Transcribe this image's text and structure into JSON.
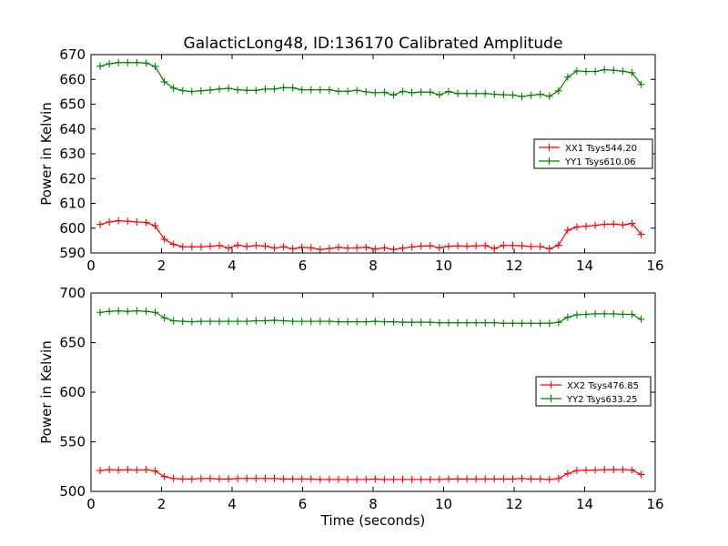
{
  "title": "GalacticLong48, ID:136170 Calibrated Amplitude",
  "chart_data": [
    {
      "type": "line",
      "ylabel": "Power in Kelvin",
      "xlabel": "",
      "xlim": [
        0,
        16
      ],
      "ylim": [
        590,
        670
      ],
      "x_ticks": [
        "0",
        "2",
        "4",
        "6",
        "8",
        "10",
        "12",
        "14",
        "16"
      ],
      "y_ticks": [
        "590",
        "600",
        "610",
        "620",
        "630",
        "640",
        "650",
        "660",
        "670"
      ],
      "legend_position": "right",
      "x": [
        0.26,
        0.52,
        0.78,
        1.04,
        1.3,
        1.56,
        1.82,
        2.08,
        2.34,
        2.6,
        2.86,
        3.12,
        3.38,
        3.64,
        3.9,
        4.16,
        4.42,
        4.68,
        4.94,
        5.2,
        5.46,
        5.72,
        5.98,
        6.24,
        6.5,
        6.76,
        7.02,
        7.28,
        7.54,
        7.8,
        8.06,
        8.32,
        8.58,
        8.84,
        9.1,
        9.36,
        9.62,
        9.88,
        10.14,
        10.4,
        10.66,
        10.92,
        11.18,
        11.44,
        11.7,
        11.96,
        12.22,
        12.48,
        12.74,
        13.0,
        13.26,
        13.52,
        13.78,
        14.04,
        14.3,
        14.56,
        14.82,
        15.08,
        15.34,
        15.6
      ],
      "series": [
        {
          "name": "XX1 Tsys544.20",
          "color": "#ff0000",
          "values": [
            601.5,
            602.5,
            603.0,
            602.8,
            602.5,
            602.3,
            601.0,
            595.5,
            593.5,
            592.5,
            592.5,
            592.5,
            592.7,
            593.0,
            592.0,
            593.2,
            592.6,
            593.0,
            592.8,
            592.0,
            592.5,
            591.7,
            592.3,
            592.1,
            591.4,
            591.8,
            592.3,
            592.0,
            592.1,
            592.3,
            591.6,
            592.1,
            591.4,
            592.0,
            592.4,
            592.8,
            592.9,
            592.1,
            592.7,
            592.9,
            592.7,
            592.9,
            593.0,
            591.8,
            593.1,
            593.0,
            592.9,
            592.6,
            592.6,
            591.7,
            593.1,
            599.2,
            600.5,
            600.8,
            601.1,
            601.6,
            601.7,
            601.3,
            601.9,
            597.5
          ]
        },
        {
          "name": "YY1 Tsys610.06",
          "color": "#008000",
          "values": [
            665.3,
            666.3,
            666.8,
            666.8,
            666.8,
            666.6,
            665.2,
            659.0,
            656.5,
            655.5,
            655.1,
            655.4,
            655.7,
            656.1,
            656.4,
            655.8,
            655.6,
            655.6,
            656.1,
            656.1,
            656.7,
            656.6,
            655.8,
            655.8,
            655.8,
            655.8,
            655.2,
            655.2,
            655.6,
            655.0,
            654.6,
            654.8,
            653.7,
            655.2,
            654.6,
            654.9,
            654.9,
            653.8,
            655.1,
            654.3,
            654.3,
            654.3,
            654.3,
            654.0,
            653.8,
            653.7,
            653.1,
            653.6,
            654.0,
            653.2,
            655.4,
            660.9,
            663.4,
            663.2,
            663.2,
            663.9,
            663.7,
            663.3,
            662.7,
            658.0
          ]
        }
      ]
    },
    {
      "type": "line",
      "ylabel": "Power in Kelvin",
      "xlabel": "Time (seconds)",
      "xlim": [
        0,
        16
      ],
      "ylim": [
        500,
        700
      ],
      "x_ticks": [
        "0",
        "2",
        "4",
        "6",
        "8",
        "10",
        "12",
        "14",
        "16"
      ],
      "y_ticks": [
        "500",
        "550",
        "600",
        "650",
        "700"
      ],
      "legend_position": "right",
      "x": [
        0.26,
        0.52,
        0.78,
        1.04,
        1.3,
        1.56,
        1.82,
        2.08,
        2.34,
        2.6,
        2.86,
        3.12,
        3.38,
        3.64,
        3.9,
        4.16,
        4.42,
        4.68,
        4.94,
        5.2,
        5.46,
        5.72,
        5.98,
        6.24,
        6.5,
        6.76,
        7.02,
        7.28,
        7.54,
        7.8,
        8.06,
        8.32,
        8.58,
        8.84,
        9.1,
        9.36,
        9.62,
        9.88,
        10.14,
        10.4,
        10.66,
        10.92,
        11.18,
        11.44,
        11.7,
        11.96,
        12.22,
        12.48,
        12.74,
        13.0,
        13.26,
        13.52,
        13.78,
        14.04,
        14.3,
        14.56,
        14.82,
        15.08,
        15.34,
        15.6
      ],
      "series": [
        {
          "name": "XX2 Tsys476.85",
          "color": "#ff0000",
          "values": [
            521,
            522,
            521.5,
            522,
            521.5,
            522,
            520.5,
            515,
            513,
            512.5,
            512.5,
            513,
            513,
            512.5,
            512.5,
            513,
            513,
            513,
            513,
            513,
            512.5,
            512.5,
            512.5,
            512.5,
            512,
            512,
            512,
            512,
            512,
            512,
            512.5,
            512,
            512,
            512,
            512,
            512,
            512,
            512,
            512.5,
            512.5,
            512.5,
            512.5,
            512.5,
            512.5,
            512.5,
            512.5,
            513,
            512.5,
            512.5,
            512,
            513,
            518,
            521,
            521.5,
            521.5,
            522,
            522,
            522,
            521.5,
            517
          ]
        },
        {
          "name": "YY2 Tsys633.25",
          "color": "#008000",
          "values": [
            680.5,
            681.5,
            682,
            681.5,
            682,
            681.5,
            680.5,
            675,
            672,
            671.5,
            671,
            671.5,
            671.5,
            671.5,
            671.5,
            671.5,
            671.5,
            672,
            672,
            672.5,
            672,
            671.5,
            671.5,
            671.5,
            671.5,
            671.5,
            671,
            671,
            671,
            671,
            671.5,
            671,
            671,
            670.5,
            670.5,
            670.5,
            670.5,
            670,
            670,
            670,
            670,
            670,
            670,
            670,
            669.5,
            669.5,
            669.5,
            669.5,
            669.5,
            669.5,
            670.5,
            675.5,
            678,
            678.5,
            679,
            679,
            679,
            678.5,
            678.5,
            673.5
          ]
        }
      ]
    }
  ]
}
